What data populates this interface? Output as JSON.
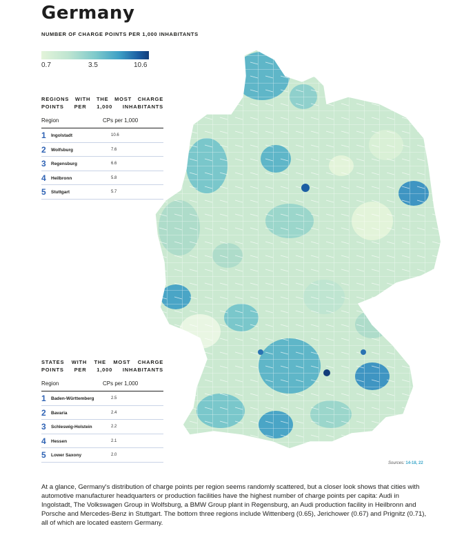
{
  "title": "Germany",
  "subtitle": "NUMBER OF CHARGE POINTS PER 1,000 INHABITANTS",
  "legend": {
    "ticks": [
      "0.7",
      "3.5",
      "10.6"
    ],
    "colors": [
      "#e3f4da",
      "#bfe5d1",
      "#7fcacb",
      "#3fa1c6",
      "#1b5ea3",
      "#123d7a"
    ]
  },
  "regions_table": {
    "title": "REGIONS WITH THE MOST CHARGE POINTS PER 1,000 INHABITANTS",
    "col_region": "Region",
    "col_value": "CPs per 1,000",
    "rows": [
      {
        "rank": "1",
        "name": "Ingolstadt",
        "value": "10.6"
      },
      {
        "rank": "2",
        "name": "Wolfsburg",
        "value": "7.6"
      },
      {
        "rank": "3",
        "name": "Regensburg",
        "value": "6.6"
      },
      {
        "rank": "4",
        "name": "Heilbronn",
        "value": "5.8"
      },
      {
        "rank": "5",
        "name": "Stuttgart",
        "value": "5.7"
      }
    ]
  },
  "states_table": {
    "title": "STATES WITH THE MOST CHARGE POINTS PER 1,000 INHABITANTS",
    "col_region": "Region",
    "col_value": "CPs per 1,000",
    "rows": [
      {
        "rank": "1",
        "name": "Baden-Württemberg",
        "value": "2.5"
      },
      {
        "rank": "2",
        "name": "Bavaria",
        "value": "2.4"
      },
      {
        "rank": "3",
        "name": "Schleswig-Holstein",
        "value": "2.2"
      },
      {
        "rank": "4",
        "name": "Hessen",
        "value": "2.1"
      },
      {
        "rank": "5",
        "name": "Lower Saxony",
        "value": "2.0"
      }
    ]
  },
  "sources": {
    "label": "Sources:",
    "refs": "14-18, 22"
  },
  "body_text": "At a glance, Germany's distribution of charge points per region seems randomly scattered, but a closer look shows that cities with automotive manufacturer headquarters or production facilities have the highest number of charge points per capita: Audi in Ingolstadt, The Volkswagen Group in Wolfsburg, a BMW Group plant in Regensburg, an Audi production facility in Heilbronn and Porsche and Mercedes-Benz in Stuttgart. The bottom three regions include Wittenberg (0.65), Jerichower (0.67) and Prignitz (0.71), all of which are located eastern Germany."
}
